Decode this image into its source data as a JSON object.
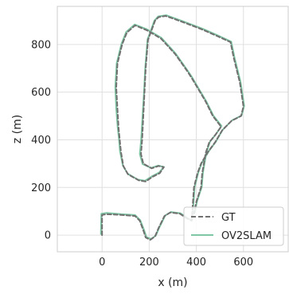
{
  "chart_data": {
    "type": "line",
    "xlabel": "x (m)",
    "ylabel": "z (m)",
    "xlim": [
      -190,
      790
    ],
    "ylim": [
      -70,
      960
    ],
    "xticks": [
      0,
      200,
      400,
      600
    ],
    "yticks": [
      0,
      200,
      400,
      600,
      800
    ],
    "grid": true,
    "legend_position": "lower-right",
    "colors": {
      "gt": "#707070",
      "ov2slam": "#7fc6a4",
      "grid": "#e0e0e0",
      "frame": "#cccccc"
    },
    "series": [
      {
        "name": "GT",
        "style": "dashed",
        "color": "#707070",
        "points": [
          [
            0,
            0
          ],
          [
            0,
            85
          ],
          [
            20,
            88
          ],
          [
            80,
            85
          ],
          [
            140,
            80
          ],
          [
            160,
            60
          ],
          [
            175,
            20
          ],
          [
            185,
            -10
          ],
          [
            205,
            -20
          ],
          [
            225,
            -5
          ],
          [
            240,
            30
          ],
          [
            265,
            80
          ],
          [
            290,
            95
          ],
          [
            330,
            90
          ],
          [
            360,
            70
          ],
          [
            380,
            60
          ],
          [
            385,
            130
          ],
          [
            390,
            200
          ],
          [
            405,
            260
          ],
          [
            420,
            300
          ],
          [
            450,
            350
          ],
          [
            480,
            390
          ],
          [
            510,
            440
          ],
          [
            550,
            480
          ],
          [
            590,
            500
          ],
          [
            600,
            540
          ],
          [
            585,
            640
          ],
          [
            560,
            740
          ],
          [
            545,
            810
          ],
          [
            490,
            835
          ],
          [
            420,
            865
          ],
          [
            340,
            895
          ],
          [
            270,
            920
          ],
          [
            240,
            915
          ],
          [
            225,
            900
          ],
          [
            210,
            860
          ],
          [
            195,
            820
          ],
          [
            185,
            700
          ],
          [
            180,
            600
          ],
          [
            175,
            500
          ],
          [
            170,
            400
          ],
          [
            165,
            340
          ],
          [
            175,
            300
          ],
          [
            210,
            280
          ],
          [
            240,
            290
          ],
          [
            262,
            285
          ],
          [
            245,
            260
          ],
          [
            215,
            245
          ],
          [
            185,
            225
          ],
          [
            155,
            230
          ],
          [
            110,
            255
          ],
          [
            90,
            290
          ],
          [
            80,
            350
          ],
          [
            75,
            400
          ],
          [
            70,
            450
          ],
          [
            65,
            530
          ],
          [
            60,
            620
          ],
          [
            65,
            720
          ],
          [
            85,
            800
          ],
          [
            105,
            850
          ],
          [
            140,
            880
          ],
          [
            190,
            860
          ],
          [
            250,
            825
          ],
          [
            310,
            760
          ],
          [
            360,
            690
          ],
          [
            380,
            660
          ],
          [
            410,
            610
          ],
          [
            440,
            560
          ],
          [
            470,
            500
          ],
          [
            505,
            455
          ],
          [
            480,
            420
          ],
          [
            455,
            390
          ],
          [
            440,
            345
          ],
          [
            425,
            260
          ],
          [
            420,
            200
          ],
          [
            400,
            140
          ],
          [
            390,
            90
          ]
        ]
      },
      {
        "name": "OV2SLAM",
        "style": "solid",
        "color": "#7fc6a4",
        "points": [
          [
            -5,
            5
          ],
          [
            -3,
            90
          ],
          [
            20,
            93
          ],
          [
            80,
            88
          ],
          [
            140,
            84
          ],
          [
            162,
            62
          ],
          [
            178,
            22
          ],
          [
            188,
            -8
          ],
          [
            208,
            -16
          ],
          [
            228,
            -2
          ],
          [
            243,
            32
          ],
          [
            268,
            82
          ],
          [
            292,
            97
          ],
          [
            332,
            92
          ],
          [
            362,
            72
          ],
          [
            382,
            62
          ],
          [
            388,
            132
          ],
          [
            393,
            202
          ],
          [
            408,
            262
          ],
          [
            423,
            302
          ],
          [
            453,
            352
          ],
          [
            483,
            392
          ],
          [
            512,
            442
          ],
          [
            552,
            482
          ],
          [
            592,
            502
          ],
          [
            603,
            542
          ],
          [
            588,
            642
          ],
          [
            563,
            742
          ],
          [
            548,
            812
          ],
          [
            492,
            838
          ],
          [
            422,
            868
          ],
          [
            342,
            898
          ],
          [
            272,
            923
          ],
          [
            238,
            918
          ],
          [
            222,
            900
          ],
          [
            208,
            862
          ],
          [
            193,
            822
          ],
          [
            183,
            702
          ],
          [
            178,
            602
          ],
          [
            172,
            502
          ],
          [
            166,
            402
          ],
          [
            160,
            340
          ],
          [
            172,
            298
          ],
          [
            208,
            282
          ],
          [
            238,
            292
          ],
          [
            262,
            286
          ],
          [
            242,
            262
          ],
          [
            212,
            247
          ],
          [
            182,
            228
          ],
          [
            152,
            233
          ],
          [
            108,
            258
          ],
          [
            88,
            292
          ],
          [
            76,
            352
          ],
          [
            72,
            402
          ],
          [
            66,
            452
          ],
          [
            60,
            532
          ],
          [
            56,
            622
          ],
          [
            62,
            722
          ],
          [
            82,
            802
          ],
          [
            102,
            852
          ],
          [
            138,
            884
          ],
          [
            190,
            864
          ],
          [
            252,
            828
          ],
          [
            312,
            762
          ],
          [
            362,
            692
          ],
          [
            382,
            662
          ],
          [
            412,
            612
          ],
          [
            442,
            562
          ],
          [
            472,
            502
          ],
          [
            507,
            458
          ],
          [
            482,
            422
          ],
          [
            458,
            392
          ],
          [
            443,
            347
          ],
          [
            428,
            262
          ],
          [
            423,
            202
          ],
          [
            403,
            142
          ],
          [
            393,
            92
          ]
        ]
      }
    ]
  }
}
